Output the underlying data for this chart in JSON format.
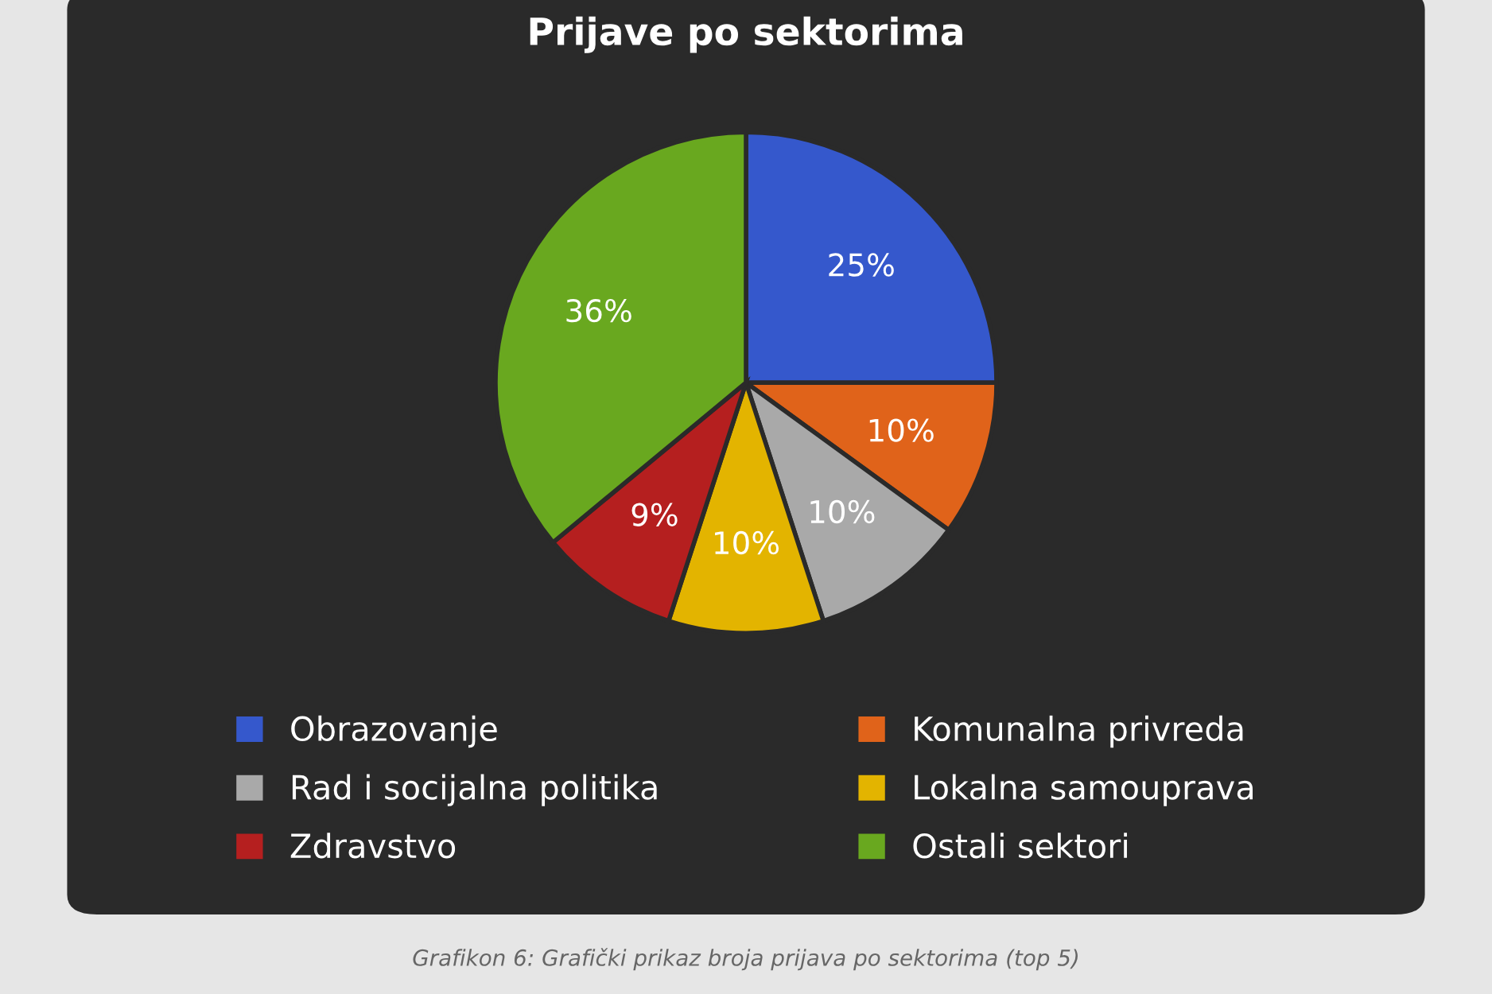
{
  "chart_data": {
    "type": "pie",
    "title": "Prijave po sektorima",
    "categories": [
      "Obrazovanje",
      "Komunalna privreda",
      "Rad i socijalna politika",
      "Lokalna samouprava",
      "Zdravstvo",
      "Ostali sektori"
    ],
    "values": [
      25,
      10,
      10,
      10,
      9,
      36
    ],
    "value_labels": [
      "25%",
      "10%",
      "10%",
      "10%",
      "9%",
      "36%"
    ],
    "colors": [
      "#3558cc",
      "#e0631a",
      "#a9a9a9",
      "#e3b400",
      "#b51f1f",
      "#69a81f"
    ],
    "legend": "bottom",
    "annotations": [
      "Grafikon 6: Grafički prikaz broja prijava po sektorima (top 5)"
    ]
  }
}
